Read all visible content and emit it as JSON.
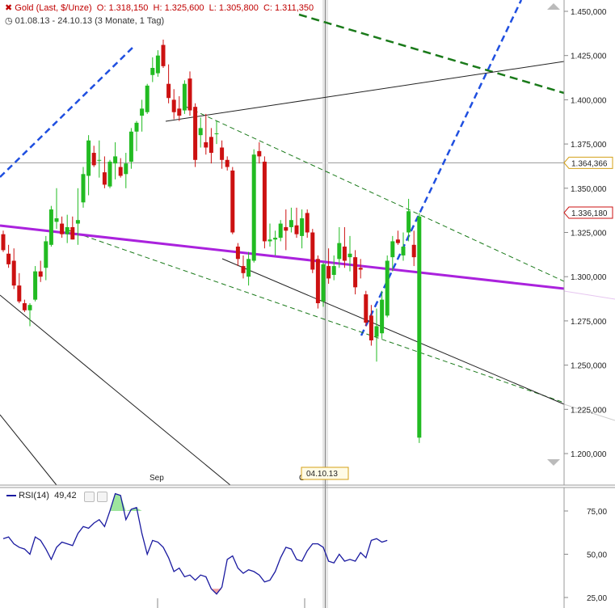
{
  "header": {
    "instrument": "Gold (Last, $/Unze)",
    "open": "O: 1.318,150",
    "high": "H: 1.325,600",
    "low": "L: 1.305,800",
    "close": "C: 1.311,350",
    "range": "01.08.13 - 24.10.13 (3 Monate, 1 Tag)"
  },
  "rsi": {
    "label": "RSI(14)",
    "value": "49,42"
  },
  "crosshair_date": "04.10.13",
  "x_labels": [
    "Sep",
    "O"
  ],
  "price_boxes": [
    "1.364,366",
    "1.336,180"
  ],
  "colors": {
    "up": "#22bb22",
    "down": "#cc1111",
    "purple": "#aa22dd",
    "blue": "#1f4fe0",
    "green_dash": "#1a7a1a"
  },
  "chart_data": {
    "type": "candlestick",
    "title": "Gold (Last, $/Unze)",
    "ylim": [
      1190,
      1460
    ],
    "yticks": [
      1200,
      1225,
      1250,
      1275,
      1300,
      1325,
      1350,
      1375,
      1400,
      1425,
      1450
    ],
    "ytick_labels": [
      "1.200,000",
      "1.225,000",
      "1.250,000",
      "1.275,000",
      "1.300,000",
      "1.325,000",
      "1.350,000",
      "1.375,000",
      "1.400,000",
      "1.425,000",
      "1.450,000"
    ],
    "candles": [
      [
        1324,
        1326,
        1314,
        1315
      ],
      [
        1313,
        1318,
        1305,
        1307
      ],
      [
        1309,
        1316,
        1293,
        1295
      ],
      [
        1295,
        1302,
        1285,
        1286
      ],
      [
        1285,
        1287,
        1280,
        1281
      ],
      [
        1281,
        1285,
        1272,
        1284
      ],
      [
        1287,
        1306,
        1286,
        1303
      ],
      [
        1303,
        1309,
        1297,
        1300
      ],
      [
        1305,
        1323,
        1298,
        1320
      ],
      [
        1318,
        1340,
        1317,
        1338
      ],
      [
        1331,
        1350,
        1327,
        1333
      ],
      [
        1330,
        1334,
        1322,
        1324
      ],
      [
        1324,
        1335,
        1319,
        1328
      ],
      [
        1328,
        1334,
        1321,
        1321
      ],
      [
        1330,
        1350,
        1318,
        1332
      ],
      [
        1342,
        1362,
        1339,
        1358
      ],
      [
        1357,
        1380,
        1346,
        1377
      ],
      [
        1370,
        1374,
        1362,
        1363
      ],
      [
        1366,
        1377,
        1356,
        1366
      ],
      [
        1359,
        1368,
        1350,
        1352
      ],
      [
        1351,
        1366,
        1350,
        1365
      ],
      [
        1364,
        1376,
        1355,
        1368
      ],
      [
        1362,
        1367,
        1356,
        1357
      ],
      [
        1358,
        1370,
        1350,
        1364
      ],
      [
        1365,
        1384,
        1361,
        1382
      ],
      [
        1382,
        1388,
        1371,
        1387
      ],
      [
        1391,
        1400,
        1382,
        1395
      ],
      [
        1393,
        1409,
        1392,
        1408
      ],
      [
        1414,
        1424,
        1410,
        1418
      ],
      [
        1415,
        1428,
        1413,
        1425
      ],
      [
        1431,
        1434,
        1418,
        1419
      ],
      [
        1409,
        1420,
        1398,
        1401
      ],
      [
        1400,
        1406,
        1389,
        1393
      ],
      [
        1395,
        1402,
        1388,
        1391
      ],
      [
        1394,
        1411,
        1392,
        1409
      ],
      [
        1412,
        1416,
        1391,
        1394
      ],
      [
        1396,
        1398,
        1362,
        1366
      ],
      [
        1380,
        1390,
        1373,
        1384
      ],
      [
        1376,
        1392,
        1369,
        1373
      ],
      [
        1379,
        1384,
        1364,
        1370
      ],
      [
        1381,
        1388,
        1375,
        1381
      ],
      [
        1373,
        1377,
        1361,
        1366
      ],
      [
        1366,
        1368,
        1360,
        1362
      ],
      [
        1360,
        1362,
        1324,
        1325
      ],
      [
        1317,
        1319,
        1306,
        1310
      ],
      [
        1306,
        1312,
        1299,
        1302
      ],
      [
        1300,
        1314,
        1295,
        1310
      ],
      [
        1309,
        1372,
        1308,
        1369
      ],
      [
        1371,
        1376,
        1364,
        1368
      ],
      [
        1365,
        1368,
        1316,
        1320
      ],
      [
        1320,
        1330,
        1317,
        1321
      ],
      [
        1321,
        1326,
        1312,
        1322
      ],
      [
        1322,
        1332,
        1320,
        1330
      ],
      [
        1328,
        1338,
        1315,
        1326
      ],
      [
        1328,
        1339,
        1325,
        1332
      ],
      [
        1329,
        1339,
        1322,
        1324
      ],
      [
        1323,
        1338,
        1316,
        1333
      ],
      [
        1336,
        1338,
        1322,
        1325
      ],
      [
        1325,
        1327,
        1302,
        1304
      ],
      [
        1310,
        1312,
        1282,
        1285
      ],
      [
        1286,
        1308,
        1283,
        1307
      ],
      [
        1306,
        1316,
        1296,
        1299
      ],
      [
        1301,
        1312,
        1298,
        1306
      ],
      [
        1310,
        1328,
        1305,
        1319
      ],
      [
        1317,
        1328,
        1305,
        1309
      ],
      [
        1311,
        1323,
        1303,
        1313
      ],
      [
        1311,
        1315,
        1290,
        1294
      ],
      [
        1305,
        1310,
        1299,
        1304
      ],
      [
        1290,
        1292,
        1272,
        1274
      ],
      [
        1278,
        1284,
        1261,
        1264
      ],
      [
        1266,
        1282,
        1252,
        1272
      ],
      [
        1268,
        1292,
        1265,
        1287
      ],
      [
        1278,
        1312,
        1277,
        1309
      ],
      [
        1311,
        1323,
        1303,
        1320
      ],
      [
        1321,
        1326,
        1318,
        1319
      ],
      [
        1312,
        1325,
        1309,
        1317
      ],
      [
        1325,
        1344,
        1320,
        1337
      ],
      [
        1318,
        1326,
        1306,
        1311
      ],
      [
        1209,
        1336,
        1206,
        1334
      ]
    ],
    "rsi": {
      "ylim": [
        20,
        88
      ],
      "yticks": [
        25,
        50,
        75
      ],
      "ytick_labels": [
        "25,00",
        "50,00",
        "75,00"
      ],
      "values": [
        59,
        60,
        56,
        54,
        53,
        50,
        60,
        58,
        53,
        47,
        54,
        57,
        56,
        55,
        62,
        66,
        65,
        68,
        70,
        66,
        75,
        85,
        84,
        70,
        76,
        77,
        62,
        50,
        58,
        57,
        54,
        48,
        40,
        42,
        37,
        38,
        35,
        38,
        37,
        30,
        27,
        31,
        47,
        49,
        42,
        39,
        41,
        40,
        38,
        34,
        35,
        40,
        48,
        54,
        53,
        47,
        46,
        52,
        56,
        56,
        54,
        46,
        45,
        50,
        46,
        47,
        46,
        51,
        48,
        58,
        59,
        57,
        58
      ]
    }
  }
}
